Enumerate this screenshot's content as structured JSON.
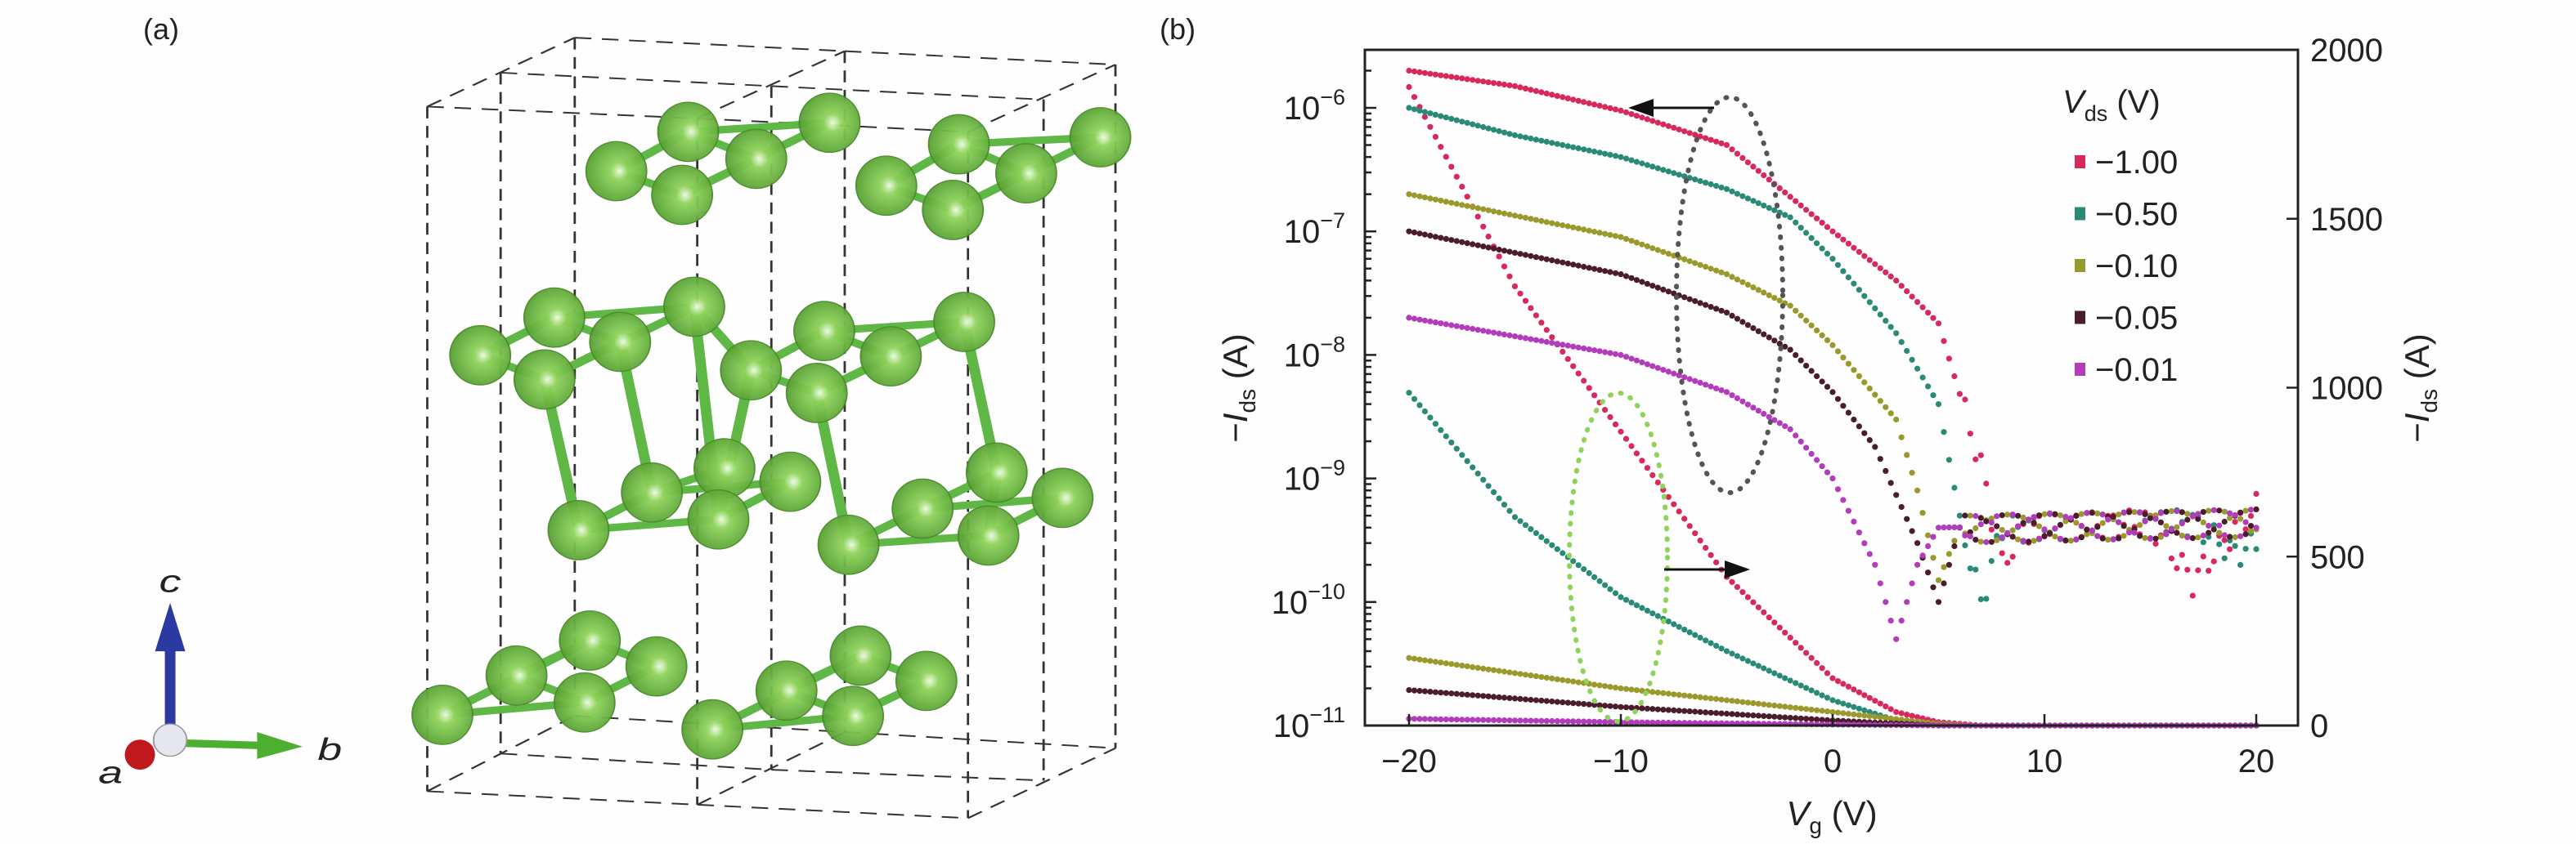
{
  "panel_a": {
    "label": "(a)",
    "axes_labels": {
      "a": "a",
      "b": "b",
      "c": "c"
    },
    "colors": {
      "atom": "#6cbf3e",
      "bond": "#5fb845",
      "c_axis": "#2b3aa0",
      "b_axis": "#4caf30",
      "a_axis": "#c0181c",
      "cell_lines": "#333333"
    }
  },
  "panel_b": {
    "label": "(b)"
  },
  "chart_data": {
    "type": "scatter",
    "xlabel": {
      "main": "V",
      "sub": "g",
      "unit": " (V)"
    },
    "ylabel_left": {
      "prefix": "−",
      "main": "I",
      "sub": "ds",
      "unit": " (A)"
    },
    "ylabel_right": {
      "prefix": "−",
      "main": "I",
      "sub": "ds",
      "unit": " (A)"
    },
    "xlim": [
      -22,
      22
    ],
    "xticks": [
      "−20",
      "−10",
      "0",
      "10",
      "20"
    ],
    "xtick_values": [
      -20,
      -10,
      0,
      10,
      20
    ],
    "ylim_left_log": [
      1e-11,
      3e-06
    ],
    "yscale_left": "log",
    "yticks_left": [
      {
        "base": "10",
        "exp": "−11",
        "value": -11
      },
      {
        "base": "10",
        "exp": "−10",
        "value": -10
      },
      {
        "base": "10",
        "exp": "−9",
        "value": -9
      },
      {
        "base": "10",
        "exp": "−8",
        "value": -8
      },
      {
        "base": "10",
        "exp": "−7",
        "value": -7
      },
      {
        "base": "10",
        "exp": "−6",
        "value": -6
      }
    ],
    "ylim_right_linear": [
      0,
      2000
    ],
    "yticks_right": [
      "0",
      "500",
      "1000",
      "1500",
      "2000"
    ],
    "ytick_right_values": [
      0,
      500,
      1000,
      1500,
      2000
    ],
    "grid": false,
    "legend": {
      "title_main": "V",
      "title_sub": "ds",
      "title_unit": " (V)",
      "placement": "top-right"
    },
    "annotations": {
      "log_group_ellipse_color": "#555555",
      "linear_group_ellipse_color": "#8fd45a",
      "arrow_left": "points to left (log) axis",
      "arrow_right": "points to right (linear) axis"
    },
    "series": [
      {
        "name": "−1.00",
        "color": "#d8285c",
        "log_points": [
          [
            -20,
            2e-06
          ],
          [
            -15,
            1.5e-06
          ],
          [
            -10,
            9.5e-07
          ],
          [
            -5,
            5e-07
          ],
          [
            0,
            1e-07
          ],
          [
            3,
            4e-08
          ],
          [
            5,
            1.8e-08
          ],
          [
            7,
            1.3e-09
          ],
          [
            8,
            2e-10
          ],
          [
            9,
            4e-10
          ],
          [
            15,
            4.5e-10
          ],
          [
            17,
            1.5e-10
          ],
          [
            19,
            4e-10
          ],
          [
            20,
            6e-10
          ]
        ],
        "linear_points": [
          [
            -20,
            1890
          ],
          [
            -15,
            1300
          ],
          [
            -10,
            870
          ],
          [
            -5,
            440
          ],
          [
            0,
            140
          ],
          [
            3,
            40
          ],
          [
            5,
            10
          ],
          [
            7,
            0
          ],
          [
            20,
            0
          ]
        ]
      },
      {
        "name": "−0.50",
        "color": "#2a8a78",
        "log_points": [
          [
            -20,
            1e-06
          ],
          [
            -15,
            6e-07
          ],
          [
            -10,
            4e-07
          ],
          [
            -5,
            2.2e-07
          ],
          [
            -2,
            1.3e-07
          ],
          [
            0,
            6e-08
          ],
          [
            3,
            1.5e-08
          ],
          [
            5,
            4e-09
          ],
          [
            6,
            5e-10
          ],
          [
            7,
            1e-10
          ],
          [
            8,
            4e-10
          ],
          [
            17,
            4.5e-10
          ],
          [
            19,
            2.5e-10
          ],
          [
            20,
            3e-10
          ]
        ],
        "linear_points": [
          [
            -20,
            985
          ],
          [
            -15,
            617
          ],
          [
            -10,
            380
          ],
          [
            -5,
            220
          ],
          [
            0,
            75
          ],
          [
            3,
            15
          ],
          [
            5,
            0
          ],
          [
            20,
            0
          ]
        ]
      },
      {
        "name": "−0.10",
        "color": "#9a9a2c",
        "log_points": [
          [
            -20,
            2e-07
          ],
          [
            -10,
            9e-08
          ],
          [
            -5,
            4.5e-08
          ],
          [
            -2,
            2.5e-08
          ],
          [
            0,
            1.2e-08
          ],
          [
            3,
            3e-09
          ],
          [
            4,
            8e-10
          ],
          [
            5,
            1.5e-10
          ],
          [
            6,
            4e-10
          ],
          [
            20,
            4.5e-10
          ]
        ],
        "linear_points": [
          [
            -20,
            200
          ],
          [
            -10,
            110
          ],
          [
            0,
            40
          ],
          [
            5,
            5
          ],
          [
            7,
            0
          ],
          [
            20,
            0
          ]
        ]
      },
      {
        "name": "−0.05",
        "color": "#4a1c2c",
        "log_points": [
          [
            -20,
            1e-07
          ],
          [
            -10,
            4.5e-08
          ],
          [
            -5,
            2.2e-08
          ],
          [
            -2,
            1.1e-08
          ],
          [
            0,
            5e-09
          ],
          [
            2,
            1.8e-09
          ],
          [
            4,
            3e-10
          ],
          [
            5,
            1e-10
          ],
          [
            6,
            4e-10
          ],
          [
            20,
            4.5e-10
          ]
        ],
        "linear_points": [
          [
            -20,
            105
          ],
          [
            -10,
            55
          ],
          [
            0,
            15
          ],
          [
            5,
            0
          ],
          [
            20,
            0
          ]
        ]
      },
      {
        "name": "−0.01",
        "color": "#b23cbc",
        "log_points": [
          [
            -20,
            2e-08
          ],
          [
            -10,
            1e-08
          ],
          [
            -5,
            5e-09
          ],
          [
            -2,
            2.5e-09
          ],
          [
            0,
            1e-09
          ],
          [
            2,
            2e-10
          ],
          [
            3,
            5e-11
          ],
          [
            4,
            2e-10
          ],
          [
            5,
            4e-10
          ],
          [
            20,
            4.5e-10
          ]
        ],
        "linear_points": [
          [
            -20,
            20
          ],
          [
            -10,
            10
          ],
          [
            0,
            3
          ],
          [
            5,
            0
          ],
          [
            20,
            0
          ]
        ]
      }
    ]
  }
}
